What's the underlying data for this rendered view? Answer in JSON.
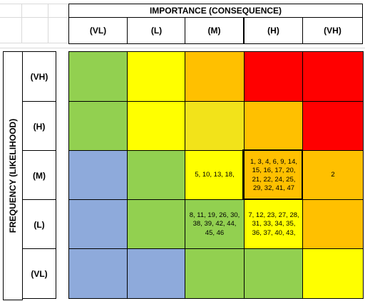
{
  "x_axis": {
    "title": "IMPORTANCE (CONSEQUENCE)",
    "levels": [
      "(VL)",
      "(L)",
      "(M)",
      "(H)",
      "(VH)"
    ]
  },
  "y_axis": {
    "title": "FREQUENCY (LIKELIHOOD)",
    "levels": [
      "(VH)",
      "(H)",
      "(M)",
      "(L)",
      "(VL)"
    ]
  },
  "colors": {
    "blue": "#8eaadb",
    "green": "#92d050",
    "yellow": "#ffff00",
    "gold": "#f2e31a",
    "orange": "#ffc000",
    "red": "#ff0000"
  },
  "matrix": [
    [
      {
        "color": "green",
        "text": ""
      },
      {
        "color": "yellow",
        "text": ""
      },
      {
        "color": "orange",
        "text": ""
      },
      {
        "color": "red",
        "text": ""
      },
      {
        "color": "red",
        "text": ""
      }
    ],
    [
      {
        "color": "green",
        "text": ""
      },
      {
        "color": "yellow",
        "text": ""
      },
      {
        "color": "gold",
        "text": ""
      },
      {
        "color": "orange",
        "text": ""
      },
      {
        "color": "red",
        "text": ""
      }
    ],
    [
      {
        "color": "blue",
        "text": ""
      },
      {
        "color": "green",
        "text": ""
      },
      {
        "color": "yellow",
        "text": "5, 10, 13, 18,"
      },
      {
        "color": "orange",
        "text": "1, 3, 4, 6, 9, 14, 15, 16, 17, 20, 21, 22, 24, 25, 29, 32, 41, 47"
      },
      {
        "color": "orange",
        "text": "2"
      }
    ],
    [
      {
        "color": "blue",
        "text": ""
      },
      {
        "color": "green",
        "text": ""
      },
      {
        "color": "green",
        "text": "8, 11, 19, 26, 30, 38, 39, 42, 44, 45, 46"
      },
      {
        "color": "yellow",
        "text": "7, 12, 23, 27, 28, 31, 33, 34, 35, 36, 37, 40, 43,"
      },
      {
        "color": "orange",
        "text": ""
      }
    ],
    [
      {
        "color": "blue",
        "text": ""
      },
      {
        "color": "blue",
        "text": ""
      },
      {
        "color": "green",
        "text": ""
      },
      {
        "color": "green",
        "text": ""
      },
      {
        "color": "yellow",
        "text": ""
      }
    ]
  ]
}
